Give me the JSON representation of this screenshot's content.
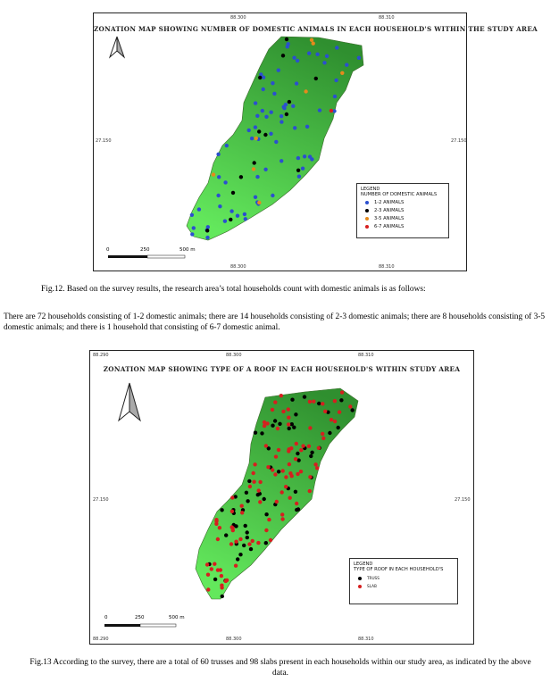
{
  "map1": {
    "title": "ZONATION MAP SHOWING NUMBER OF DOMESTIC ANIMALS IN EACH HOUSEHOLD'S WITHIN THE STUDY AREA",
    "coords": {
      "top_left": "88.300",
      "top_right": "88.310",
      "bottom_left": "88.300",
      "bottom_right": "88.310",
      "left_mid": "27.150",
      "right_mid": "27.150"
    },
    "legend": {
      "title": "LEGEND",
      "subtitle": "NUMBER OF DOMESTIC ANIMALS",
      "items": [
        {
          "label": "1-2 ANIMALS",
          "color": "#2b4fcf"
        },
        {
          "label": "2-3 ANIMALS",
          "color": "#000000"
        },
        {
          "label": "3-5 ANIMALS",
          "color": "#e58a1c"
        },
        {
          "label": "6-7 ANIMALS",
          "color": "#d61f1f"
        }
      ]
    },
    "scale": {
      "zero": "0",
      "mid": "250",
      "end": "500 m"
    }
  },
  "caption12": "Fig.12. Based on the survey results, the research area’s total households count with domestic animals is as follows:",
  "paragraph": "There are 72 households consisting of 1-2 domestic animals; there are 14 households consisting of 2-3 domestic animals; there are 8 households consisting of 3-5 domestic animals; and there is 1 household that consisting of 6-7 domestic animal.",
  "map2": {
    "title": "ZONATION MAP SHOWING TYPE OF A ROOF IN EACH HOUSEHOLD'S WITHIN STUDY AREA",
    "coords": {
      "top_left": "88.290",
      "top_mid": "88.300",
      "top_right": "88.310",
      "bottom_left": "88.290",
      "bottom_mid": "88.300",
      "bottom_right": "88.310",
      "left_mid": "27.150",
      "right_mid": "27.150"
    },
    "legend": {
      "title": "LEGEND",
      "subtitle": "TYPE OF ROOF IN EACH HOUSEHOLD'S",
      "items": [
        {
          "label": "TRUSS",
          "color": "#000000"
        },
        {
          "label": "SLAB",
          "color": "#d61f1f"
        }
      ]
    },
    "scale": {
      "zero": "0",
      "mid": "250",
      "end": "500 m"
    }
  },
  "caption13": "Fig.13 According to the survey, there are a total of 60 trusses and 98 slabs present in each households within our study area, as indicated by the above data."
}
